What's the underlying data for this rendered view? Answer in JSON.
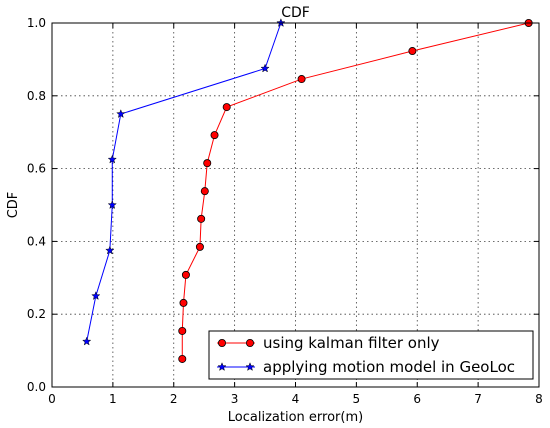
{
  "chart_data": {
    "type": "line",
    "title": "CDF",
    "xlabel": "Localization error(m)",
    "ylabel": "CDF",
    "xlim": [
      0,
      8
    ],
    "ylim": [
      0,
      1
    ],
    "xticks": [
      "0",
      "1",
      "2",
      "3",
      "4",
      "5",
      "6",
      "7",
      "8"
    ],
    "yticks": [
      "0.0",
      "0.2",
      "0.4",
      "0.6",
      "0.8",
      "1.0"
    ],
    "grid": true,
    "legend_position": "lower-right",
    "series": [
      {
        "name": "using kalman filter only",
        "color": "#ff0000",
        "marker": "circle",
        "x": [
          2.14,
          2.14,
          2.16,
          2.2,
          2.43,
          2.45,
          2.51,
          2.55,
          2.67,
          2.87,
          4.1,
          5.92,
          7.83
        ],
        "y": [
          0.077,
          0.154,
          0.231,
          0.308,
          0.385,
          0.462,
          0.538,
          0.615,
          0.692,
          0.769,
          0.846,
          0.923,
          1.0
        ]
      },
      {
        "name": "applying motion model in GeoLoc",
        "color": "#0000ff",
        "marker": "star",
        "x": [
          0.57,
          0.72,
          0.95,
          0.99,
          0.99,
          1.13,
          3.5,
          3.76
        ],
        "y": [
          0.125,
          0.25,
          0.375,
          0.5,
          0.625,
          0.75,
          0.875,
          1.0
        ]
      }
    ]
  }
}
